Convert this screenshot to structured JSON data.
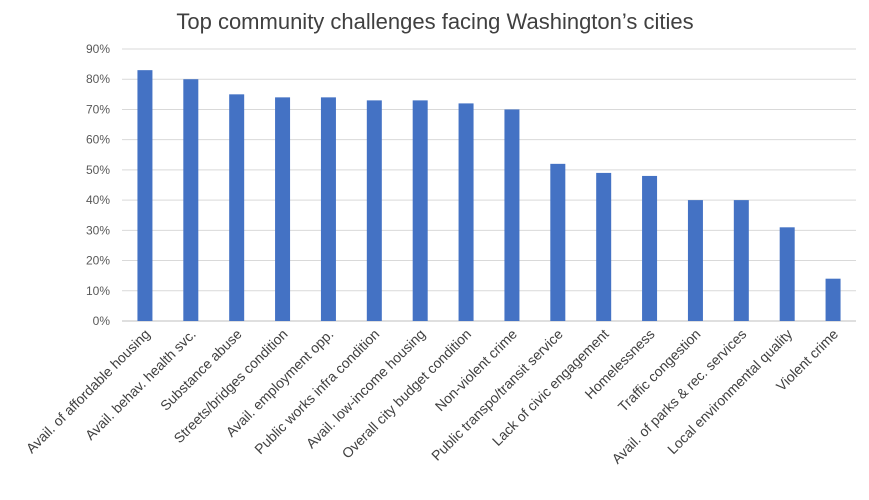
{
  "chart_data": {
    "type": "bar",
    "title": "Top community challenges facing Washington’s cities",
    "xlabel": "",
    "ylabel": "",
    "categories": [
      "Avail. of affordable housing",
      "Avail. behav. health svc.",
      "Substance abuse",
      "Streets/bridges condition",
      "Avail. employment opp.",
      "Public works infra condition",
      "Avail. low-income housing",
      "Overall city budget condition",
      "Non-violent crime",
      "Public transpo/transit service",
      "Lack of civic engagement",
      "Homelessness",
      "Traffic congestion",
      "Avail. of parks & rec. services",
      "Local environmental quality",
      "Violent crime"
    ],
    "values": [
      83,
      80,
      75,
      74,
      74,
      73,
      73,
      72,
      70,
      52,
      49,
      48,
      40,
      40,
      31,
      14
    ],
    "ylim": [
      0,
      90
    ],
    "yticks": [
      0,
      10,
      20,
      30,
      40,
      50,
      60,
      70,
      80,
      90
    ],
    "ytick_labels": [
      "0%",
      "10%",
      "20%",
      "30%",
      "40%",
      "50%",
      "60%",
      "70%",
      "80%",
      "90%"
    ],
    "value_format": "percent",
    "grid": true,
    "legend": "none",
    "bar_color": "#4472c4"
  }
}
